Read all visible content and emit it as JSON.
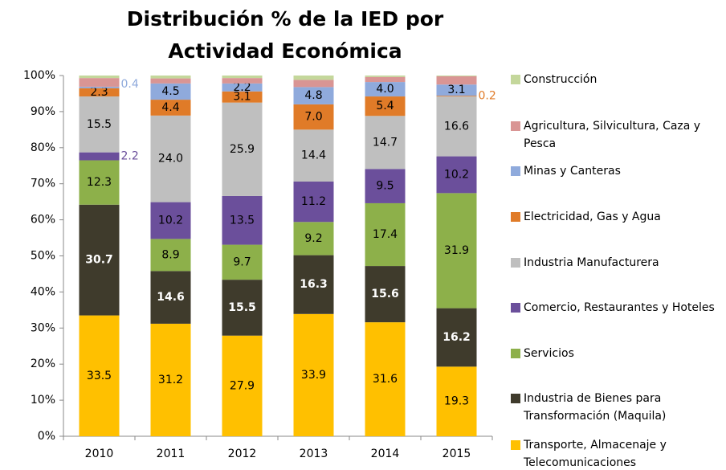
{
  "chart_data": {
    "type": "stacked_bar",
    "title": "Distribución % de la IED por Actividad Económica",
    "categories": [
      "2010",
      "2011",
      "2012",
      "2013",
      "2014",
      "2015"
    ],
    "ylim": [
      0,
      100
    ],
    "yticks": [
      {
        "value": 0,
        "label": "0%"
      },
      {
        "value": 10,
        "label": "10%"
      },
      {
        "value": 20,
        "label": "20%"
      },
      {
        "value": 30,
        "label": "30%"
      },
      {
        "value": 40,
        "label": "40%"
      },
      {
        "value": 50,
        "label": "50%"
      },
      {
        "value": 60,
        "label": "60%"
      },
      {
        "value": 70,
        "label": "70%"
      },
      {
        "value": 80,
        "label": "80%"
      },
      {
        "value": 90,
        "label": "90%"
      },
      {
        "value": 100,
        "label": "100%"
      }
    ],
    "grid": false,
    "legend": "right",
    "series": [
      {
        "name": "Transporte, Almacenaje y Telecomunicaciones",
        "color": "#ffc000",
        "values": [
          33.5,
          31.2,
          27.9,
          33.9,
          31.6,
          19.3
        ],
        "value_labels": [
          "33.5",
          "31.2",
          "27.9",
          "33.9",
          "31.6",
          "19.3"
        ]
      },
      {
        "name": "Industria de Bienes para Transformación (Maquila)",
        "color": "#3f3b2c",
        "values": [
          30.7,
          14.6,
          15.5,
          16.3,
          15.6,
          16.2
        ],
        "value_labels": [
          "30.7",
          "14.6",
          "15.5",
          "16.3",
          "15.6",
          "16.2"
        ]
      },
      {
        "name": "Servicios",
        "color": "#8db04a",
        "values": [
          12.3,
          8.9,
          9.7,
          9.2,
          17.4,
          31.9
        ],
        "value_labels": [
          "12.3",
          "8.9",
          "9.7",
          "9.2",
          "17.4",
          "31.9"
        ]
      },
      {
        "name": "Comercio, Restaurantes y Hoteles",
        "color": "#6b4f9b",
        "values": [
          2.2,
          10.2,
          13.5,
          11.2,
          9.5,
          10.2
        ],
        "value_labels": [
          "2.2",
          "10.2",
          "13.5",
          "11.2",
          "9.5",
          "10.2"
        ]
      },
      {
        "name": "Industria Manufacturera",
        "color": "#bfbfbf",
        "values": [
          15.5,
          24.0,
          25.9,
          14.4,
          14.7,
          16.6
        ],
        "value_labels": [
          "15.5",
          "24.0",
          "25.9",
          "14.4",
          "14.7",
          "16.6"
        ]
      },
      {
        "name": "Electricidad, Gas y Agua",
        "color": "#e07b28",
        "values": [
          2.3,
          4.4,
          3.1,
          7.0,
          5.4,
          0.2
        ],
        "value_labels": [
          "2.3",
          "4.4",
          "3.1",
          "7.0",
          "5.4",
          "0.2"
        ]
      },
      {
        "name": "Minas y Canteras",
        "color": "#8faadc",
        "values": [
          0.4,
          4.5,
          2.2,
          4.8,
          4.0,
          3.1
        ],
        "value_labels": [
          "0.4",
          "4.5",
          "2.2",
          "4.8",
          "4.0",
          "3.1"
        ]
      },
      {
        "name": "Agricultura, Silvicultura, Caza y Pesca",
        "color": "#d99594",
        "values": [
          2.4,
          1.4,
          1.5,
          2.0,
          1.4,
          2.3
        ],
        "value_labels": [
          null,
          null,
          null,
          null,
          null,
          null
        ]
      },
      {
        "name": "Construcción",
        "color": "#c4d79b",
        "values": [
          0.7,
          0.8,
          0.7,
          1.2,
          0.4,
          0.2
        ],
        "value_labels": [
          null,
          null,
          null,
          null,
          null,
          null
        ]
      }
    ]
  }
}
